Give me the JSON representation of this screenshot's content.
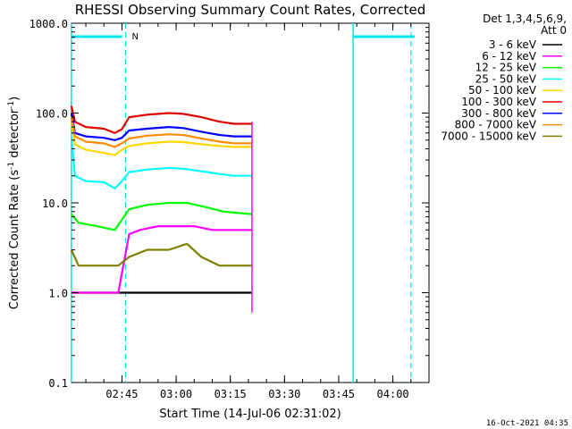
{
  "chart_data": {
    "type": "line",
    "title": "RHESSI Observing Summary Count Rates, Corrected",
    "xlabel": "Start Time (14-Jul-06 02:31:02)",
    "ylabel": "Corrected Count Rate (s-1 detector-1)",
    "y_scale": "log",
    "ylim": [
      0.1,
      1000.0
    ],
    "xlim": [
      "02:31:02",
      "04:10:00"
    ],
    "x_ticks": [
      "02:45",
      "03:00",
      "03:15",
      "03:30",
      "03:45",
      "04:00"
    ],
    "y_ticks": [
      "0.1",
      "1.0",
      "10.0",
      "100.0",
      "1000.0"
    ],
    "legend_header": [
      "Det 1,3,4,5,6,9,",
      "Att 0"
    ],
    "legend_position": "right",
    "footer": "16-Oct-2021 04:35",
    "flag_label": "N",
    "series": [
      {
        "name": "3 - 6 keV",
        "color": "#000000",
        "x": [
          "02:31",
          "02:40",
          "02:50",
          "02:55",
          "03:00",
          "03:05",
          "03:10",
          "03:15",
          "03:21"
        ],
        "y": [
          1.0,
          1.0,
          1.0,
          1.0,
          1.0,
          1.0,
          1.0,
          1.0,
          1.0
        ]
      },
      {
        "name": "6 - 12 keV",
        "color": "#ff00ff",
        "x": [
          "02:31",
          "02:35",
          "02:40",
          "02:44",
          "02:47",
          "02:50",
          "02:55",
          "03:00",
          "03:05",
          "03:10",
          "03:15",
          "03:21"
        ],
        "y": [
          1.0,
          1.0,
          1.0,
          1.0,
          4.5,
          5.0,
          5.5,
          5.5,
          5.5,
          5.0,
          5.0,
          5.0
        ]
      },
      {
        "name": "12 - 25 keV",
        "color": "#00ff00",
        "x": [
          "02:31",
          "02:33",
          "02:38",
          "02:43",
          "02:47",
          "02:52",
          "02:58",
          "03:03",
          "03:08",
          "03:13",
          "03:21"
        ],
        "y": [
          7.5,
          6.0,
          5.5,
          5.0,
          8.5,
          9.5,
          10.0,
          10.0,
          9.0,
          8.0,
          7.5
        ]
      },
      {
        "name": "25 - 50 keV",
        "color": "#00ffff",
        "x": [
          "02:31",
          "02:32",
          "02:35",
          "02:40",
          "02:43",
          "02:45",
          "02:47",
          "02:52",
          "02:58",
          "03:02",
          "03:07",
          "03:12",
          "03:16",
          "03:21"
        ],
        "y": [
          55.0,
          20.0,
          17.5,
          17.0,
          14.5,
          17.5,
          22.0,
          23.5,
          24.5,
          24.0,
          22.5,
          21.0,
          20.0,
          20.0
        ]
      },
      {
        "name": "50 - 100 keV",
        "color": "#ffd700",
        "x": [
          "02:31",
          "02:32",
          "02:35",
          "02:40",
          "02:43",
          "02:45",
          "02:47",
          "02:52",
          "02:58",
          "03:02",
          "03:07",
          "03:12",
          "03:16",
          "03:21"
        ],
        "y": [
          80.0,
          45.0,
          39.0,
          36.0,
          34.0,
          39.0,
          43.0,
          46.0,
          48.0,
          47.5,
          45.0,
          43.0,
          42.0,
          42.0
        ]
      },
      {
        "name": "100 - 300 keV",
        "color": "#e00000",
        "x": [
          "02:31",
          "02:32",
          "02:35",
          "02:40",
          "02:43",
          "02:45",
          "02:47",
          "02:52",
          "02:58",
          "03:02",
          "03:07",
          "03:12",
          "03:16",
          "03:21"
        ],
        "y": [
          120.0,
          80.0,
          70.0,
          67.0,
          60.0,
          66.0,
          90.0,
          96.0,
          100.0,
          98.0,
          90.0,
          80.0,
          76.0,
          76.0
        ]
      },
      {
        "name": "300 - 800 keV",
        "color": "#0000ff",
        "x": [
          "02:31",
          "02:32",
          "02:35",
          "02:40",
          "02:43",
          "02:45",
          "02:47",
          "02:52",
          "02:58",
          "03:02",
          "03:07",
          "03:12",
          "03:16",
          "03:21"
        ],
        "y": [
          100.0,
          60.0,
          55.0,
          53.0,
          50.0,
          53.0,
          64.0,
          67.0,
          70.0,
          68.0,
          62.0,
          57.0,
          55.0,
          55.0
        ]
      },
      {
        "name": "800 - 7000 keV",
        "color": "#ff8c00",
        "x": [
          "02:31",
          "02:32",
          "02:35",
          "02:40",
          "02:43",
          "02:45",
          "02:47",
          "02:52",
          "02:58",
          "03:02",
          "03:07",
          "03:12",
          "03:16",
          "03:21"
        ],
        "y": [
          90.0,
          55.0,
          48.0,
          46.0,
          42.0,
          46.0,
          52.0,
          56.0,
          58.0,
          57.0,
          52.0,
          48.0,
          46.0,
          46.0
        ]
      },
      {
        "name": "7000 - 15000 keV",
        "color": "#808000",
        "x": [
          "02:31",
          "02:33",
          "02:40",
          "02:44",
          "02:47",
          "02:52",
          "02:58",
          "03:03",
          "03:07",
          "03:12",
          "03:16",
          "03:21"
        ],
        "y": [
          3.0,
          2.0,
          2.0,
          2.0,
          2.5,
          3.0,
          3.0,
          3.5,
          2.5,
          2.0,
          2.0,
          2.0
        ]
      }
    ],
    "cyan_markers": [
      "02:46",
      "03:49",
      "04:05"
    ],
    "cyan_bars": [
      [
        "02:31",
        "02:45"
      ],
      [
        "03:49",
        "04:06"
      ]
    ]
  }
}
